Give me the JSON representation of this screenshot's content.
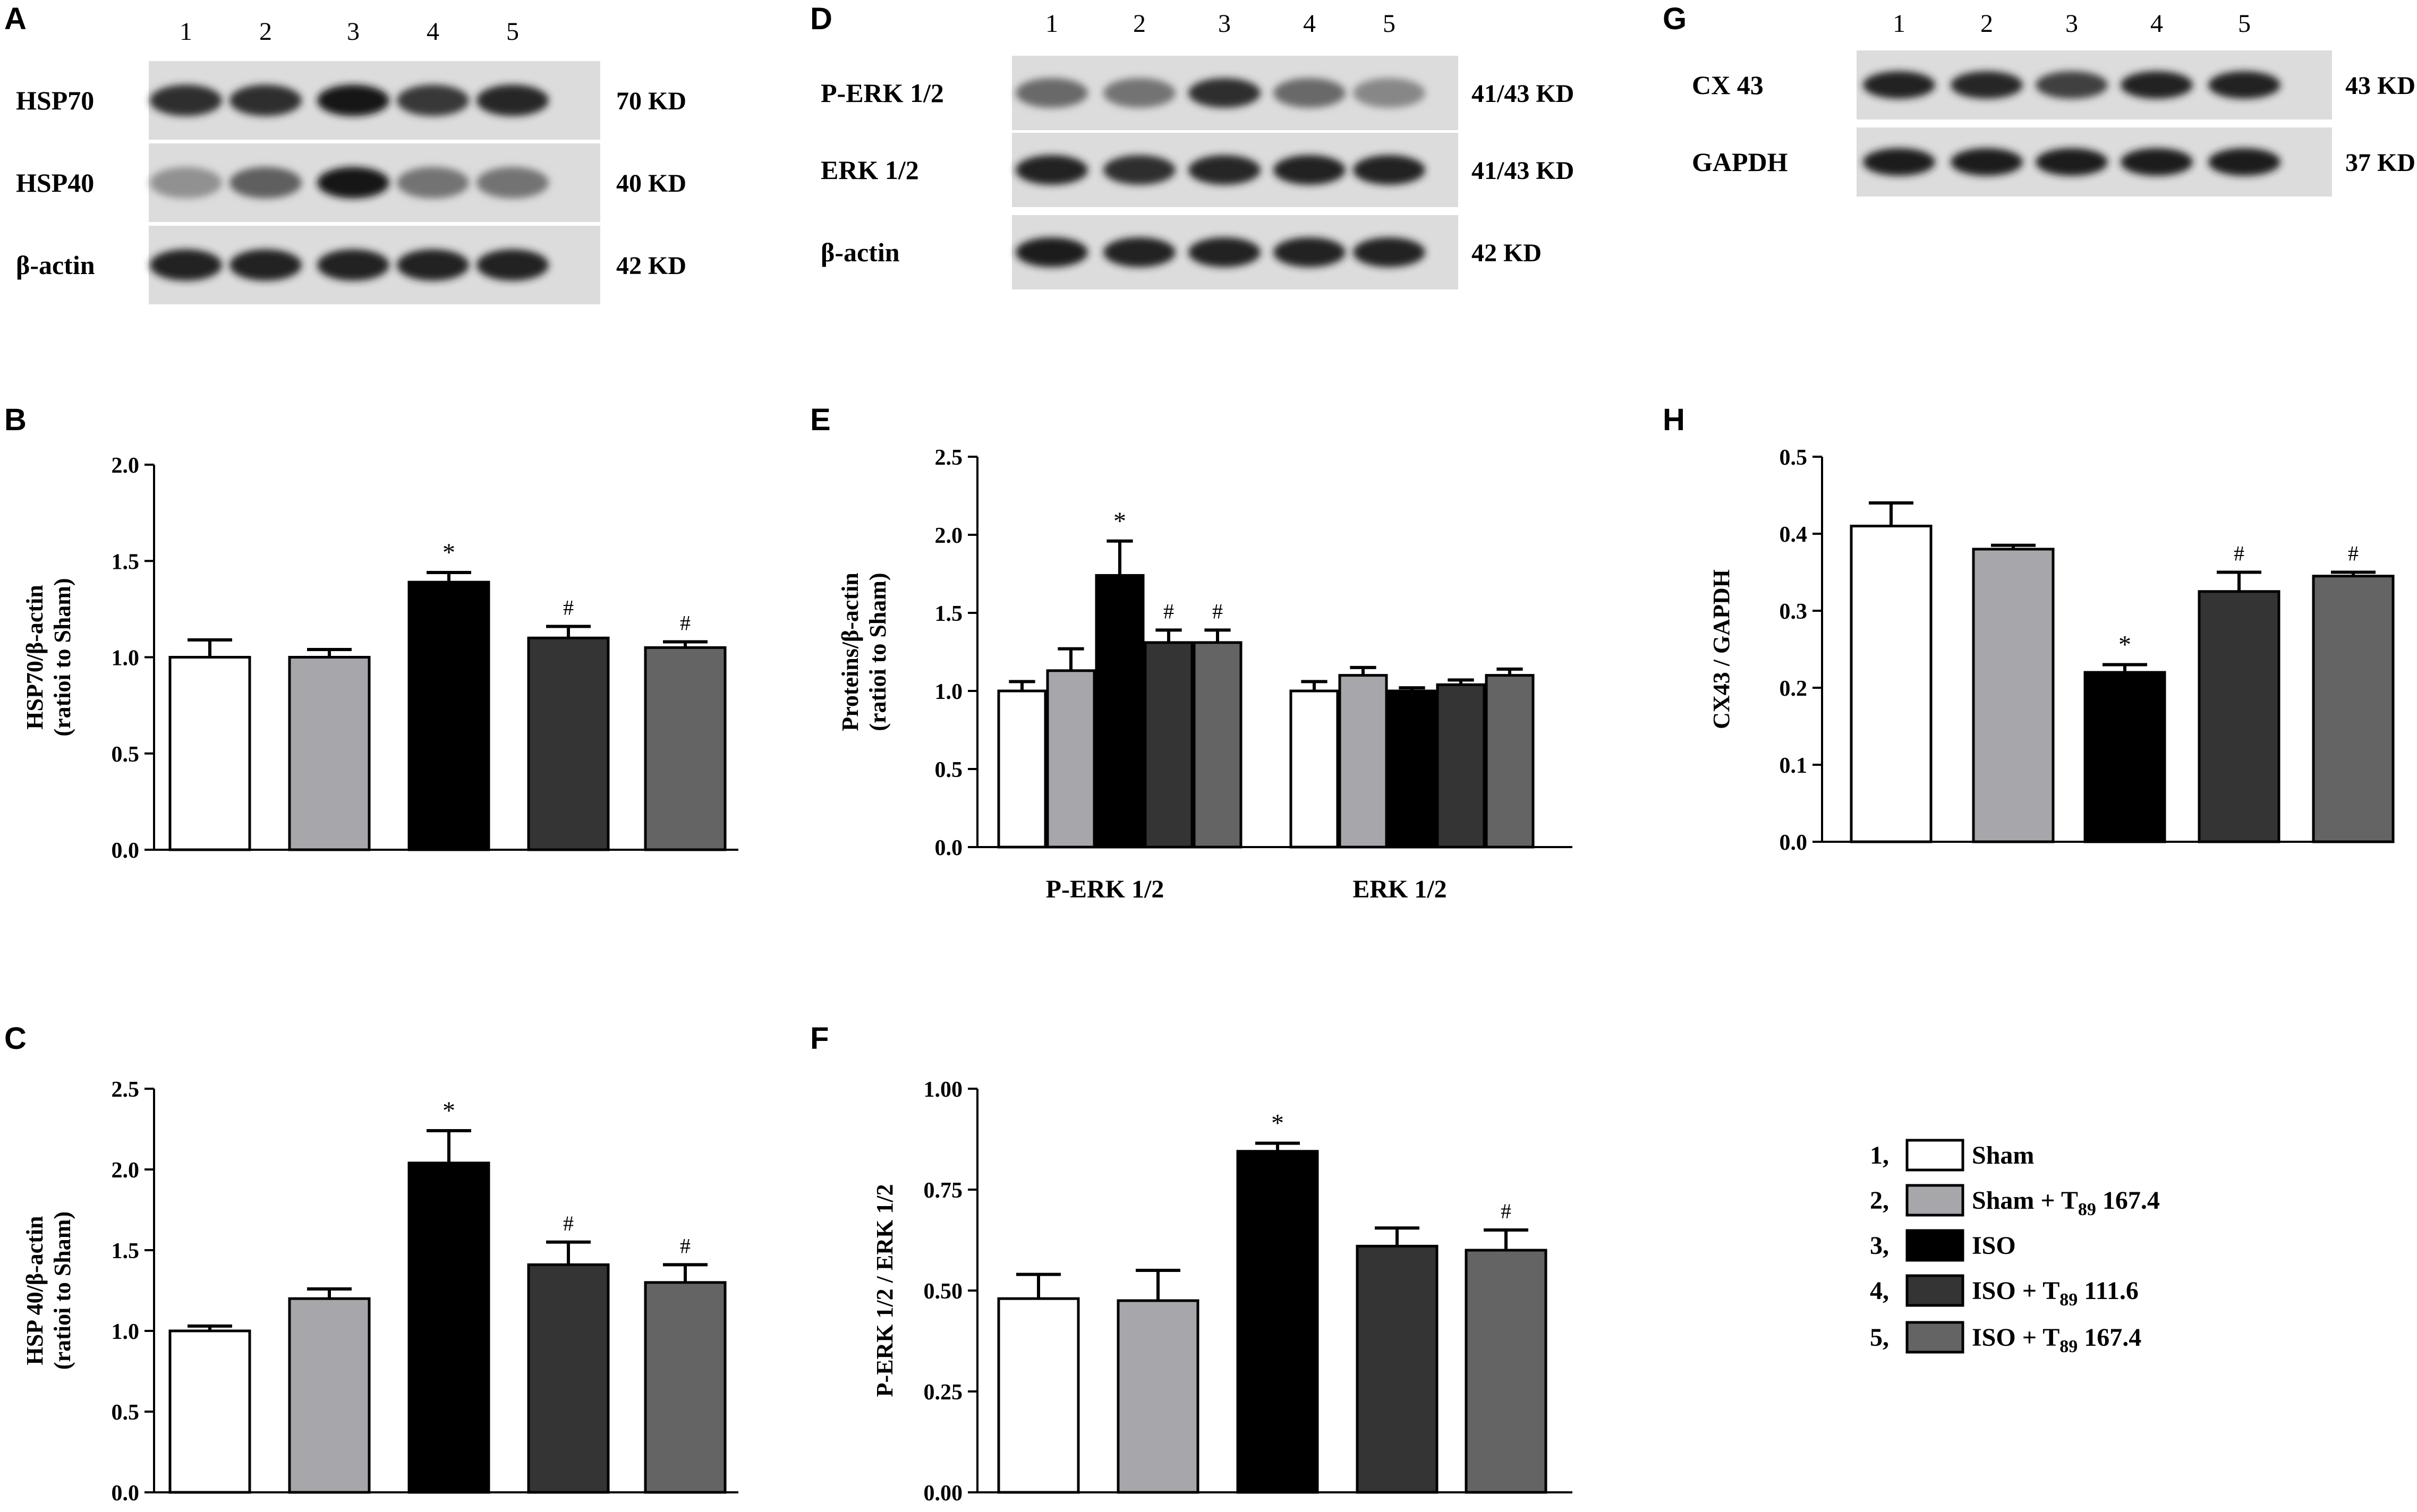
{
  "panel_letters": {
    "A": "A",
    "B": "B",
    "C": "C",
    "D": "D",
    "E": "E",
    "F": "F",
    "G": "G",
    "H": "H"
  },
  "lane_numbers": [
    "1",
    "2",
    "3",
    "4",
    "5"
  ],
  "blots": [
    {
      "id": "A",
      "rows": [
        {
          "protein": "HSP70",
          "size": "70 KD",
          "intensity": [
            0.85,
            0.85,
            0.95,
            0.8,
            0.88
          ]
        },
        {
          "protein": "HSP40",
          "size": "40 KD",
          "intensity": [
            0.35,
            0.6,
            0.95,
            0.5,
            0.5
          ]
        },
        {
          "protein": "β-actin",
          "size": "42 KD",
          "intensity": [
            0.9,
            0.9,
            0.9,
            0.9,
            0.9
          ]
        }
      ]
    },
    {
      "id": "D",
      "rows": [
        {
          "protein": "P-ERK 1/2",
          "size": "41/43 KD",
          "intensity": [
            0.55,
            0.5,
            0.85,
            0.55,
            0.4
          ]
        },
        {
          "protein": "ERK 1/2",
          "size": "41/43 KD",
          "intensity": [
            0.9,
            0.85,
            0.88,
            0.9,
            0.9
          ]
        },
        {
          "protein": "β-actin",
          "size": "42 KD",
          "intensity": [
            0.92,
            0.9,
            0.9,
            0.9,
            0.9
          ]
        }
      ]
    },
    {
      "id": "G",
      "rows": [
        {
          "protein": "CX 43",
          "size": "43 KD",
          "intensity": [
            0.9,
            0.88,
            0.75,
            0.9,
            0.9
          ]
        },
        {
          "protein": "GAPDH",
          "size": "37 KD",
          "intensity": [
            0.92,
            0.92,
            0.92,
            0.92,
            0.92
          ]
        }
      ]
    }
  ],
  "colors": {
    "group_fills": [
      "#ffffff",
      "#a7a7ab",
      "#000000",
      "#343434",
      "#646464"
    ],
    "axis": "#000000"
  },
  "chart_data": [
    {
      "id": "B",
      "type": "bar",
      "ylabel_lines": [
        "HSP70/β-actin",
        "(ratioi to Sham)"
      ],
      "ylim": [
        0,
        2.0
      ],
      "yticks": [
        "0.0",
        "0.5",
        "1.0",
        "1.5",
        "2.0"
      ],
      "values": [
        1.0,
        1.0,
        1.39,
        1.1,
        1.05
      ],
      "errors": [
        0.09,
        0.04,
        0.05,
        0.06,
        0.03
      ],
      "marks": [
        "",
        "",
        "*",
        "#",
        "#"
      ]
    },
    {
      "id": "C",
      "type": "bar",
      "ylabel_lines": [
        "HSP 40/β-actin",
        "(ratioi to Sham)"
      ],
      "ylim": [
        0,
        2.5
      ],
      "yticks": [
        "0.0",
        "0.5",
        "1.0",
        "1.5",
        "2.0",
        "2.5"
      ],
      "values": [
        1.0,
        1.2,
        2.04,
        1.41,
        1.3
      ],
      "errors": [
        0.03,
        0.06,
        0.2,
        0.14,
        0.11
      ],
      "marks": [
        "",
        "",
        "*",
        "#",
        "#"
      ]
    },
    {
      "id": "E",
      "type": "bar",
      "ylabel_lines": [
        "Proteins/β-actin",
        "(ratioi to Sham)"
      ],
      "ylim": [
        0,
        2.5
      ],
      "yticks": [
        "0.0",
        "0.5",
        "1.0",
        "1.5",
        "2.0",
        "2.5"
      ],
      "categories": [
        "P-ERK  1/2",
        "ERK  1/2"
      ],
      "series": [
        {
          "values": [
            1.0,
            1.0
          ],
          "errors": [
            0.06,
            0.06
          ],
          "marks": [
            "",
            ""
          ]
        },
        {
          "values": [
            1.13,
            1.1
          ],
          "errors": [
            0.14,
            0.05
          ],
          "marks": [
            "",
            ""
          ]
        },
        {
          "values": [
            1.74,
            1.0
          ],
          "errors": [
            0.22,
            0.02
          ],
          "marks": [
            "*",
            ""
          ]
        },
        {
          "values": [
            1.31,
            1.04
          ],
          "errors": [
            0.08,
            0.03
          ],
          "marks": [
            "#",
            ""
          ]
        },
        {
          "values": [
            1.31,
            1.1
          ],
          "errors": [
            0.08,
            0.04
          ],
          "marks": [
            "#",
            ""
          ]
        }
      ]
    },
    {
      "id": "F",
      "type": "bar",
      "ylabel_lines": [
        "P-ERK 1/2 / ERK 1/2"
      ],
      "ylim": [
        0,
        1.0
      ],
      "yticks": [
        "0.00",
        "0.25",
        "0.50",
        "0.75",
        "1.00"
      ],
      "values": [
        0.48,
        0.475,
        0.845,
        0.61,
        0.6
      ],
      "errors": [
        0.06,
        0.075,
        0.02,
        0.045,
        0.05
      ],
      "marks": [
        "",
        "",
        "*",
        "",
        "#"
      ]
    },
    {
      "id": "H",
      "type": "bar",
      "ylabel_lines": [
        "CX43 / GAPDH"
      ],
      "ylim": [
        0,
        0.5
      ],
      "yticks": [
        "0.0",
        "0.1",
        "0.2",
        "0.3",
        "0.4",
        "0.5"
      ],
      "values": [
        0.41,
        0.38,
        0.22,
        0.325,
        0.345
      ],
      "errors": [
        0.03,
        0.005,
        0.01,
        0.025,
        0.005
      ],
      "marks": [
        "",
        "",
        "*",
        "#",
        "#"
      ]
    }
  ],
  "legend": {
    "items": [
      {
        "num": "1,",
        "label": "Sham",
        "sub": "",
        "dose": ""
      },
      {
        "num": "2,",
        "label": "Sham + T",
        "sub": "89",
        "dose": " 167.4"
      },
      {
        "num": "3,",
        "label": "ISO",
        "sub": "",
        "dose": ""
      },
      {
        "num": "4,",
        "label": "ISO + T",
        "sub": "89",
        "dose": " 111.6"
      },
      {
        "num": "5,",
        "label": "ISO + T",
        "sub": "89",
        "dose": " 167.4"
      }
    ]
  }
}
